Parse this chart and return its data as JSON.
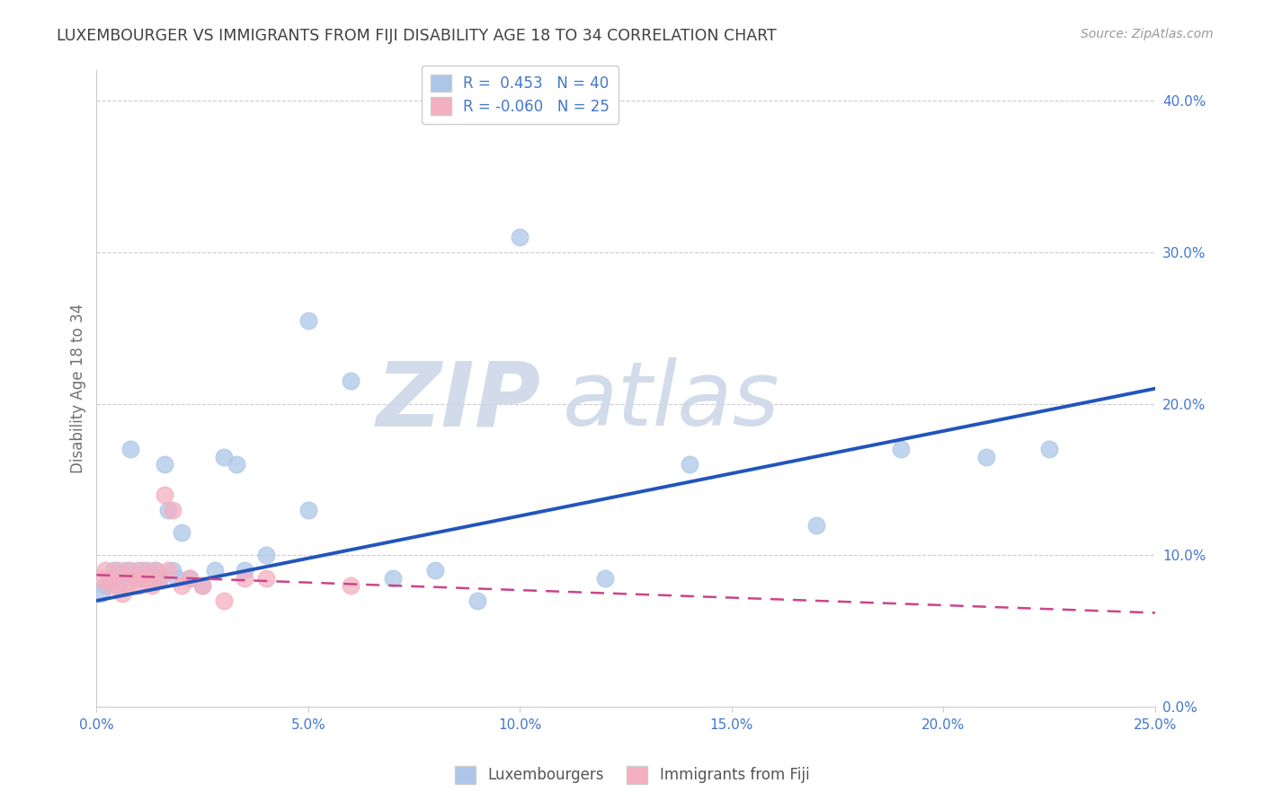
{
  "title": "LUXEMBOURGER VS IMMIGRANTS FROM FIJI DISABILITY AGE 18 TO 34 CORRELATION CHART",
  "source": "Source: ZipAtlas.com",
  "ylabel": "Disability Age 18 to 34",
  "xlabel": "",
  "blue_R": 0.453,
  "blue_N": 40,
  "pink_R": -0.06,
  "pink_N": 25,
  "blue_color": "#adc6e8",
  "pink_color": "#f4afc0",
  "blue_line_color": "#2255bb",
  "pink_line_color": "#cc4488",
  "xlim": [
    0.0,
    0.25
  ],
  "ylim": [
    -0.02,
    0.44
  ],
  "plot_ylim": [
    0.0,
    0.42
  ],
  "xticks": [
    0.0,
    0.05,
    0.1,
    0.15,
    0.2,
    0.25
  ],
  "yticks_right": [
    0.0,
    0.1,
    0.2,
    0.3,
    0.4
  ],
  "blue_scatter_x": [
    0.001,
    0.002,
    0.003,
    0.004,
    0.005,
    0.006,
    0.007,
    0.008,
    0.009,
    0.01,
    0.011,
    0.012,
    0.013,
    0.014,
    0.015,
    0.016,
    0.017,
    0.018,
    0.019,
    0.02,
    0.022,
    0.025,
    0.028,
    0.03,
    0.033,
    0.04,
    0.05,
    0.06,
    0.07,
    0.08,
    0.09,
    0.1,
    0.12,
    0.14,
    0.17,
    0.19,
    0.21,
    0.225,
    0.05,
    0.035
  ],
  "blue_scatter_y": [
    0.075,
    0.08,
    0.085,
    0.09,
    0.08,
    0.085,
    0.09,
    0.17,
    0.085,
    0.09,
    0.085,
    0.09,
    0.085,
    0.09,
    0.085,
    0.16,
    0.13,
    0.09,
    0.085,
    0.115,
    0.085,
    0.08,
    0.09,
    0.165,
    0.16,
    0.1,
    0.255,
    0.215,
    0.085,
    0.09,
    0.07,
    0.31,
    0.085,
    0.16,
    0.12,
    0.17,
    0.165,
    0.17,
    0.13,
    0.09
  ],
  "pink_scatter_x": [
    0.001,
    0.002,
    0.003,
    0.004,
    0.005,
    0.006,
    0.007,
    0.008,
    0.009,
    0.01,
    0.011,
    0.012,
    0.013,
    0.014,
    0.015,
    0.016,
    0.017,
    0.018,
    0.02,
    0.022,
    0.025,
    0.03,
    0.035,
    0.04,
    0.06
  ],
  "pink_scatter_y": [
    0.085,
    0.09,
    0.08,
    0.085,
    0.09,
    0.075,
    0.08,
    0.09,
    0.085,
    0.08,
    0.09,
    0.085,
    0.08,
    0.09,
    0.085,
    0.14,
    0.09,
    0.13,
    0.08,
    0.085,
    0.08,
    0.07,
    0.085,
    0.085,
    0.08
  ],
  "blue_line_x0": 0.0,
  "blue_line_y0": 0.07,
  "blue_line_x1": 0.25,
  "blue_line_y1": 0.21,
  "pink_line_x0": 0.0,
  "pink_line_y0": 0.087,
  "pink_line_x1": 0.25,
  "pink_line_y1": 0.062,
  "legend_label_blue": "Luxembourgers",
  "legend_label_pink": "Immigrants from Fiji",
  "background_color": "#ffffff",
  "grid_color": "#cccccc",
  "title_color": "#404040",
  "axis_label_color": "#707070",
  "tick_label_color": "#4477cc",
  "watermark_zip": "ZIP",
  "watermark_atlas": "atlas",
  "watermark_color": "#ccd8e8"
}
